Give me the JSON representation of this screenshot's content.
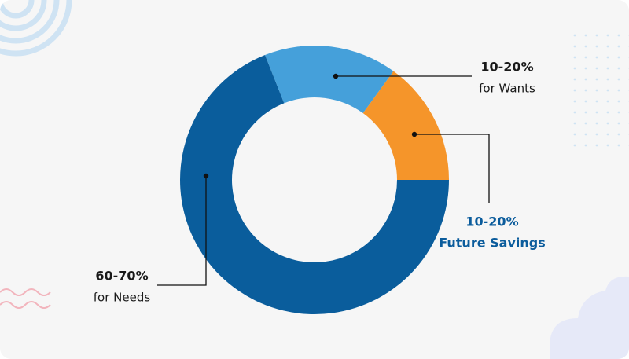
{
  "chart_data": {
    "type": "pie",
    "donut": true,
    "categories": [
      "for Needs",
      "for Wants",
      "Future Savings"
    ],
    "values": [
      69,
      16,
      15
    ],
    "value_labels": [
      "60-70%",
      "10-20%",
      "10-20%"
    ],
    "colors": [
      "#0a5d9c",
      "#45a0da",
      "#f5952a"
    ]
  }
}
